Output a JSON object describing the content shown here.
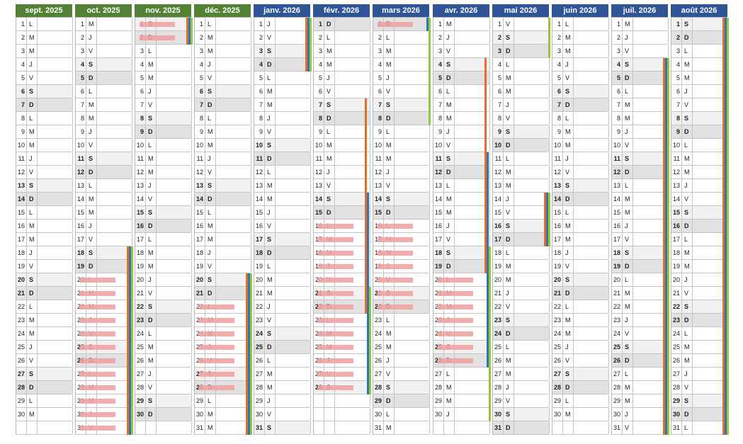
{
  "colors": {
    "header_2025": "#548235",
    "header_2026": "#2f5597",
    "zone_a": "#e46c2c",
    "zone_b": "#2e75b6",
    "zone_c": "#92c83e",
    "highlight": "#f0a3a3",
    "saturday_bg": "#f1f1f1",
    "sunday_bg": "#e2e2e2"
  },
  "months": [
    {
      "title": "sept. 2025",
      "year": 2025,
      "month": 9,
      "days": 30,
      "first_weekday": 1,
      "highlight": [],
      "zone_a": [],
      "zone_b": [],
      "zone_c": []
    },
    {
      "title": "oct. 2025",
      "year": 2025,
      "month": 10,
      "days": 31,
      "first_weekday": 3,
      "highlight": [
        [
          20,
          31
        ]
      ],
      "zone_a": [
        [
          18,
          31
        ]
      ],
      "zone_b": [
        [
          18,
          31
        ]
      ],
      "zone_c": [
        [
          18,
          31
        ]
      ]
    },
    {
      "title": "nov. 2025",
      "year": 2025,
      "month": 11,
      "days": 30,
      "first_weekday": 6,
      "highlight": [
        [
          1,
          2
        ]
      ],
      "zone_a": [
        [
          1,
          2
        ]
      ],
      "zone_b": [
        [
          1,
          2
        ]
      ],
      "zone_c": [
        [
          1,
          2
        ]
      ]
    },
    {
      "title": "déc. 2025",
      "year": 2025,
      "month": 12,
      "days": 31,
      "first_weekday": 1,
      "highlight": [
        [
          22,
          28
        ]
      ],
      "zone_a": [
        [
          20,
          31
        ]
      ],
      "zone_b": [
        [
          20,
          31
        ]
      ],
      "zone_c": [
        [
          20,
          31
        ]
      ]
    },
    {
      "title": "janv. 2026",
      "year": 2026,
      "month": 1,
      "days": 31,
      "first_weekday": 4,
      "highlight": [],
      "zone_a": [
        [
          1,
          4
        ]
      ],
      "zone_b": [
        [
          1,
          4
        ]
      ],
      "zone_c": [
        [
          1,
          4
        ]
      ]
    },
    {
      "title": "févr. 2026",
      "year": 2026,
      "month": 2,
      "days": 28,
      "first_weekday": 0,
      "highlight": [
        [
          16,
          28
        ]
      ],
      "zone_a": [
        [
          7,
          22
        ]
      ],
      "zone_b": [
        [
          14,
          28
        ]
      ],
      "zone_c": [
        [
          21,
          28
        ]
      ]
    },
    {
      "title": "mars 2026",
      "year": 2026,
      "month": 3,
      "days": 31,
      "first_weekday": 0,
      "highlight": [
        [
          1,
          1
        ],
        [
          16,
          22
        ]
      ],
      "zone_a": [],
      "zone_b": [
        [
          1,
          1
        ]
      ],
      "zone_c": [
        [
          1,
          8
        ]
      ]
    },
    {
      "title": "avr. 2026",
      "year": 2026,
      "month": 4,
      "days": 30,
      "first_weekday": 3,
      "highlight": [
        [
          20,
          26
        ]
      ],
      "zone_a": [
        [
          4,
          19
        ]
      ],
      "zone_b": [
        [
          11,
          26
        ]
      ],
      "zone_c": [
        [
          18,
          30
        ]
      ]
    },
    {
      "title": "mai 2026",
      "year": 2026,
      "month": 5,
      "days": 31,
      "first_weekday": 5,
      "highlight": [],
      "zone_a": [
        [
          14,
          17
        ]
      ],
      "zone_b": [
        [
          14,
          17
        ]
      ],
      "zone_c": [
        [
          1,
          3
        ],
        [
          14,
          17
        ]
      ]
    },
    {
      "title": "juin 2026",
      "year": 2026,
      "month": 6,
      "days": 30,
      "first_weekday": 1,
      "highlight": [],
      "zone_a": [],
      "zone_b": [],
      "zone_c": []
    },
    {
      "title": "juil. 2026",
      "year": 2026,
      "month": 7,
      "days": 31,
      "first_weekday": 3,
      "highlight": [],
      "zone_a": [
        [
          4,
          31
        ]
      ],
      "zone_b": [
        [
          4,
          31
        ]
      ],
      "zone_c": [
        [
          4,
          31
        ]
      ]
    },
    {
      "title": "août 2026",
      "year": 2026,
      "month": 8,
      "days": 31,
      "first_weekday": 6,
      "highlight": [],
      "zone_a": [
        [
          1,
          31
        ]
      ],
      "zone_b": [
        [
          1,
          31
        ]
      ],
      "zone_c": [
        [
          1,
          31
        ]
      ]
    }
  ],
  "weekday_letters": [
    "D",
    "L",
    "M",
    "M",
    "J",
    "V",
    "S"
  ]
}
